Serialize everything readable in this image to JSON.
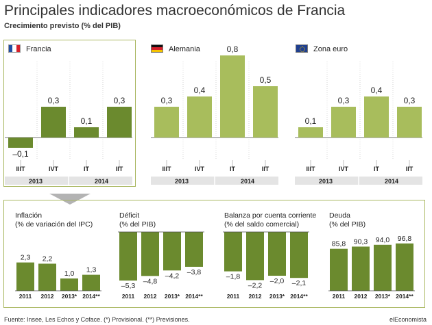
{
  "header": {
    "title": "Principales indicadores macroeconómicos de Francia",
    "subtitle": "Crecimiento previsto (% del PIB)"
  },
  "footer": {
    "source": "Fuente: Insee, Les Echos y Coface. (*) Provisional. (**) Previsiones.",
    "brand": "elEconomista"
  },
  "colors": {
    "dark_green": "#6b8a2e",
    "light_green": "#a8bd5c",
    "band": "#e4e4e4",
    "arrow": "#b3b3b3",
    "frame": "#a9b761"
  },
  "icons": [
    "flag-france-icon",
    "flag-germany-icon",
    "flag-eurozone-icon"
  ],
  "chart_data": [
    {
      "type": "bar",
      "title": "Francia",
      "categories": [
        "IIIT",
        "IVT",
        "IT",
        "IIT"
      ],
      "year_groups": [
        {
          "label": "2013",
          "span": 2
        },
        {
          "label": "2014",
          "span": 2
        }
      ],
      "values": [
        -0.1,
        0.3,
        0.1,
        0.3
      ],
      "value_labels": [
        "–0,1",
        "0,3",
        "0,1",
        "0,3"
      ],
      "color": "#6b8a2e"
    },
    {
      "type": "bar",
      "title": "Alemania",
      "categories": [
        "IIIT",
        "IVT",
        "IT",
        "IIT"
      ],
      "year_groups": [
        {
          "label": "2013",
          "span": 2
        },
        {
          "label": "2014",
          "span": 2
        }
      ],
      "values": [
        0.3,
        0.4,
        0.8,
        0.5
      ],
      "value_labels": [
        "0,3",
        "0,4",
        "0,8",
        "0,5"
      ],
      "color": "#a8bd5c"
    },
    {
      "type": "bar",
      "title": "Zona euro",
      "categories": [
        "IIIT",
        "IVT",
        "IT",
        "IIT"
      ],
      "year_groups": [
        {
          "label": "2013",
          "span": 2
        },
        {
          "label": "2014",
          "span": 2
        }
      ],
      "values": [
        0.1,
        0.3,
        0.4,
        0.3
      ],
      "value_labels": [
        "0,1",
        "0,3",
        "0,4",
        "0,3"
      ],
      "color": "#a8bd5c"
    },
    {
      "type": "bar",
      "title": "Inflación",
      "subtitle": "(% de variación del IPC)",
      "categories": [
        "2011",
        "2012",
        "2013*",
        "2014**"
      ],
      "values": [
        2.3,
        2.2,
        1.0,
        1.3
      ],
      "value_labels": [
        "2,3",
        "2,2",
        "1,0",
        "1,3"
      ],
      "color": "#6b8a2e"
    },
    {
      "type": "bar",
      "title": "Déficit",
      "subtitle": "(% del PIB)",
      "categories": [
        "2011",
        "2012",
        "2013*",
        "2014**"
      ],
      "values": [
        -5.3,
        -4.8,
        -4.2,
        -3.8
      ],
      "value_labels": [
        "–5,3",
        "–4,8",
        "–4,2",
        "–3,8"
      ],
      "color": "#6b8a2e"
    },
    {
      "type": "bar",
      "title": "Balanza por cuenta corriente",
      "subtitle": "(% del saldo comercial)",
      "categories": [
        "2011",
        "2012",
        "2013*",
        "2014**"
      ],
      "values": [
        -1.8,
        -2.2,
        -2.0,
        -2.1
      ],
      "value_labels": [
        "–1,8",
        "–2,2",
        "–2,0",
        "–2,1"
      ],
      "color": "#6b8a2e"
    },
    {
      "type": "bar",
      "title": "Deuda",
      "subtitle": "(% del PIB)",
      "categories": [
        "2011",
        "2012",
        "2013*",
        "2014**"
      ],
      "values": [
        85.8,
        90.3,
        94.0,
        96.8
      ],
      "value_labels": [
        "85,8",
        "90,3",
        "94,0",
        "96,8"
      ],
      "color": "#6b8a2e"
    }
  ]
}
